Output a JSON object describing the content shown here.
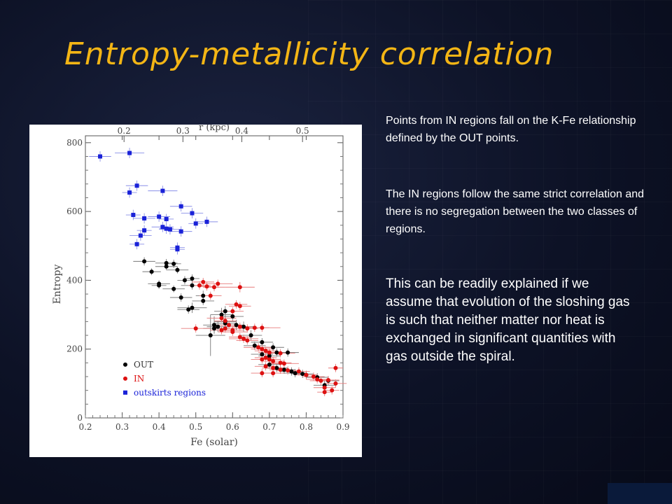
{
  "title": "Entropy-metallicity correlation",
  "paragraphs": {
    "p1": "Points from IN regions  fall on the  K-Fe relationship defined by the OUT points.",
    "p2": "The IN regions follow the same strict correlation and there is no segregation between the two classes of regions.",
    "p3": "This can be readily explained if we assume that evolution  of the sloshing gas is such that neither matter nor heat is exchanged in significant quantities with gas outside the spiral."
  },
  "colors": {
    "title": "#f3b515",
    "out": "#000000",
    "in": "#dd1111",
    "outskirts": "#1a22d8"
  },
  "chart_data": {
    "type": "scatter",
    "xlabel": "Fe (solar)",
    "ylabel": "Entropy",
    "top_xlabel": "r (kpc)",
    "xlim": [
      0.2,
      0.9
    ],
    "ylim": [
      0,
      820
    ],
    "x_ticks": [
      0.2,
      0.3,
      0.4,
      0.5,
      0.6,
      0.7,
      0.8,
      0.9
    ],
    "x_tick_labels": [
      "0.2",
      "0.3",
      "0.4",
      "0.5",
      "0.6",
      "0.7",
      "0.8",
      "0.9"
    ],
    "y_ticks": [
      0,
      200,
      400,
      600,
      800
    ],
    "y_tick_labels": [
      "0",
      "200",
      "400",
      "600",
      "800"
    ],
    "top_ticks": [
      0.2,
      0.3,
      0.4,
      0.5
    ],
    "top_tick_labels": [
      "0.2",
      "0.3",
      "0.4",
      "0.5"
    ],
    "top_tick_fe": [
      0.305,
      0.465,
      0.625,
      0.79
    ],
    "legend_position": "bottom-left",
    "series": [
      {
        "name": "OUT",
        "marker": "circle",
        "color": "#000000",
        "points": [
          [
            0.36,
            455,
            0.03,
            12
          ],
          [
            0.38,
            425,
            0.025,
            10
          ],
          [
            0.42,
            450,
            0.03,
            12
          ],
          [
            0.44,
            448,
            0.02,
            12
          ],
          [
            0.42,
            440,
            0.03,
            10
          ],
          [
            0.45,
            430,
            0.03,
            10
          ],
          [
            0.4,
            390,
            0.03,
            10
          ],
          [
            0.4,
            385,
            0.02,
            10
          ],
          [
            0.47,
            400,
            0.02,
            12
          ],
          [
            0.49,
            405,
            0.02,
            12
          ],
          [
            0.49,
            385,
            0.03,
            12
          ],
          [
            0.44,
            375,
            0.03,
            10
          ],
          [
            0.46,
            350,
            0.03,
            12
          ],
          [
            0.52,
            355,
            0.02,
            15
          ],
          [
            0.52,
            340,
            0.03,
            12
          ],
          [
            0.49,
            320,
            0.04,
            15
          ],
          [
            0.48,
            315,
            0.03,
            12
          ],
          [
            0.58,
            310,
            0.03,
            15
          ],
          [
            0.57,
            300,
            0.03,
            20
          ],
          [
            0.6,
            295,
            0.03,
            15
          ],
          [
            0.58,
            280,
            0.03,
            15
          ],
          [
            0.58,
            275,
            0.03,
            15
          ],
          [
            0.55,
            270,
            0.03,
            25
          ],
          [
            0.56,
            265,
            0.03,
            15
          ],
          [
            0.55,
            260,
            0.03,
            15
          ],
          [
            0.54,
            240,
            0.04,
            60
          ],
          [
            0.61,
            270,
            0.02,
            15
          ],
          [
            0.63,
            265,
            0.03,
            15
          ],
          [
            0.65,
            240,
            0.03,
            15
          ],
          [
            0.66,
            210,
            0.03,
            12
          ],
          [
            0.68,
            220,
            0.03,
            12
          ],
          [
            0.71,
            205,
            0.03,
            12
          ],
          [
            0.72,
            190,
            0.03,
            12
          ],
          [
            0.75,
            190,
            0.03,
            12
          ],
          [
            0.68,
            185,
            0.03,
            12
          ],
          [
            0.7,
            180,
            0.03,
            12
          ],
          [
            0.7,
            155,
            0.03,
            12
          ],
          [
            0.72,
            145,
            0.03,
            12
          ],
          [
            0.74,
            140,
            0.03,
            12
          ],
          [
            0.76,
            135,
            0.03,
            12
          ],
          [
            0.77,
            130,
            0.03,
            12
          ],
          [
            0.79,
            128,
            0.03,
            12
          ],
          [
            0.8,
            125,
            0.03,
            12
          ],
          [
            0.83,
            118,
            0.03,
            12
          ],
          [
            0.86,
            108,
            0.03,
            12
          ],
          [
            0.85,
            95,
            0.03,
            12
          ]
        ]
      },
      {
        "name": "IN",
        "marker": "circle",
        "color": "#dd1111",
        "points": [
          [
            0.52,
            395,
            0.03,
            12
          ],
          [
            0.51,
            385,
            0.03,
            12
          ],
          [
            0.53,
            382,
            0.02,
            12
          ],
          [
            0.55,
            380,
            0.03,
            12
          ],
          [
            0.56,
            390,
            0.04,
            12
          ],
          [
            0.62,
            380,
            0.04,
            15
          ],
          [
            0.54,
            355,
            0.03,
            12
          ],
          [
            0.61,
            330,
            0.03,
            12
          ],
          [
            0.62,
            325,
            0.03,
            12
          ],
          [
            0.6,
            310,
            0.03,
            12
          ],
          [
            0.57,
            290,
            0.04,
            12
          ],
          [
            0.58,
            282,
            0.03,
            12
          ],
          [
            0.59,
            270,
            0.03,
            12
          ],
          [
            0.62,
            265,
            0.03,
            12
          ],
          [
            0.64,
            260,
            0.03,
            12
          ],
          [
            0.66,
            262,
            0.04,
            12
          ],
          [
            0.68,
            262,
            0.05,
            12
          ],
          [
            0.6,
            255,
            0.03,
            12
          ],
          [
            0.6,
            250,
            0.04,
            12
          ],
          [
            0.58,
            260,
            0.03,
            12
          ],
          [
            0.57,
            255,
            0.03,
            12
          ],
          [
            0.5,
            260,
            0.04,
            12
          ],
          [
            0.62,
            235,
            0.03,
            12
          ],
          [
            0.63,
            230,
            0.04,
            12
          ],
          [
            0.64,
            225,
            0.03,
            12
          ],
          [
            0.67,
            205,
            0.04,
            12
          ],
          [
            0.68,
            200,
            0.03,
            12
          ],
          [
            0.69,
            195,
            0.03,
            12
          ],
          [
            0.7,
            190,
            0.03,
            12
          ],
          [
            0.73,
            188,
            0.04,
            12
          ],
          [
            0.69,
            175,
            0.03,
            12
          ],
          [
            0.7,
            170,
            0.03,
            12
          ],
          [
            0.71,
            165,
            0.03,
            12
          ],
          [
            0.73,
            160,
            0.03,
            12
          ],
          [
            0.74,
            158,
            0.04,
            12
          ],
          [
            0.68,
            170,
            0.03,
            12
          ],
          [
            0.69,
            150,
            0.03,
            12
          ],
          [
            0.71,
            145,
            0.03,
            12
          ],
          [
            0.73,
            140,
            0.03,
            12
          ],
          [
            0.75,
            138,
            0.03,
            12
          ],
          [
            0.78,
            135,
            0.03,
            12
          ],
          [
            0.8,
            125,
            0.03,
            12
          ],
          [
            0.82,
            120,
            0.03,
            12
          ],
          [
            0.83,
            112,
            0.03,
            12
          ],
          [
            0.84,
            108,
            0.03,
            12
          ],
          [
            0.86,
            110,
            0.03,
            12
          ],
          [
            0.88,
            100,
            0.03,
            12
          ],
          [
            0.85,
            88,
            0.03,
            12
          ],
          [
            0.87,
            80,
            0.02,
            12
          ],
          [
            0.85,
            75,
            0.02,
            12
          ],
          [
            0.88,
            145,
            0.02,
            12
          ],
          [
            0.68,
            130,
            0.03,
            12
          ],
          [
            0.71,
            130,
            0.03,
            12
          ]
        ]
      },
      {
        "name": "outskirts regions",
        "marker": "square",
        "color": "#1a22d8",
        "points": [
          [
            0.24,
            760,
            0.03,
            15
          ],
          [
            0.32,
            770,
            0.04,
            15
          ],
          [
            0.32,
            655,
            0.02,
            15
          ],
          [
            0.34,
            675,
            0.03,
            15
          ],
          [
            0.41,
            660,
            0.04,
            15
          ],
          [
            0.4,
            585,
            0.03,
            15
          ],
          [
            0.46,
            615,
            0.03,
            15
          ],
          [
            0.49,
            595,
            0.03,
            15
          ],
          [
            0.33,
            590,
            0.02,
            15
          ],
          [
            0.36,
            580,
            0.03,
            15
          ],
          [
            0.42,
            578,
            0.02,
            15
          ],
          [
            0.5,
            565,
            0.02,
            15
          ],
          [
            0.53,
            570,
            0.03,
            15
          ],
          [
            0.36,
            545,
            0.02,
            15
          ],
          [
            0.41,
            555,
            0.03,
            15
          ],
          [
            0.42,
            550,
            0.02,
            15
          ],
          [
            0.43,
            548,
            0.03,
            15
          ],
          [
            0.46,
            542,
            0.03,
            15
          ],
          [
            0.35,
            530,
            0.03,
            15
          ],
          [
            0.34,
            505,
            0.02,
            15
          ],
          [
            0.45,
            495,
            0.02,
            15
          ],
          [
            0.45,
            490,
            0.02,
            15
          ]
        ]
      }
    ]
  }
}
